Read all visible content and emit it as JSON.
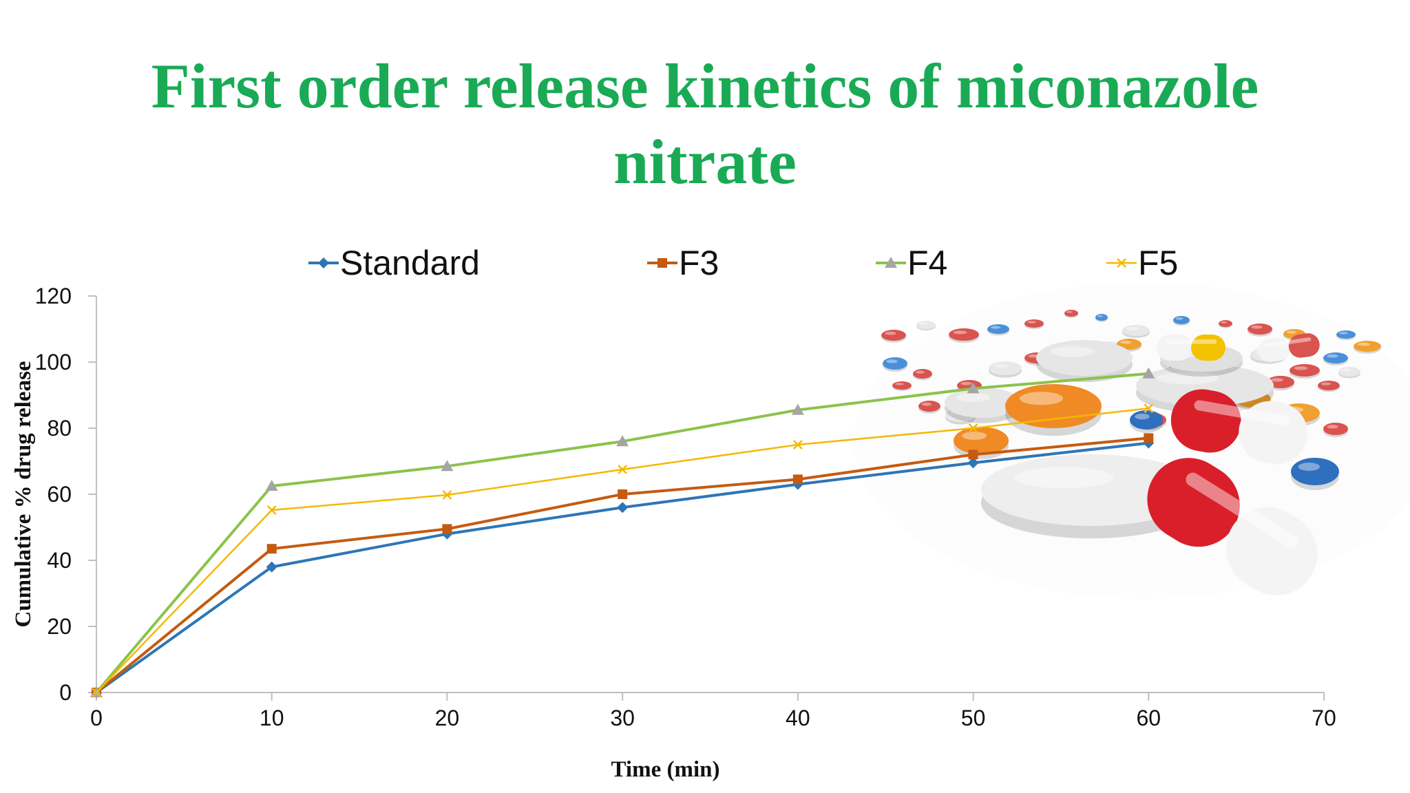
{
  "title_lines": [
    "First order release kinetics of miconazole",
    "nitrate"
  ],
  "colors": {
    "title": "#1aaa55",
    "Standard": "#2e75b6",
    "F3": "#c55a11",
    "F4": "#8bc34a",
    "F5": "#f5b800"
  },
  "chart_data": {
    "type": "line",
    "title": "First order release kinetics of miconazole nitrate",
    "xlabel": "Time (min)",
    "ylabel": "Cumulative % drug release",
    "xlim": [
      0,
      70
    ],
    "ylim": [
      0,
      120
    ],
    "x_ticks": [
      "0",
      "10",
      "20",
      "30",
      "40",
      "50",
      "60",
      "70"
    ],
    "y_ticks": [
      "0",
      "20",
      "40",
      "60",
      "80",
      "100",
      "120"
    ],
    "legend_position": "top",
    "grid": false,
    "x": [
      0,
      10,
      20,
      30,
      40,
      50,
      60
    ],
    "series": [
      {
        "name": "Standard",
        "marker": "diamond",
        "values": [
          0,
          38,
          48,
          56,
          63,
          69.5,
          75.5
        ]
      },
      {
        "name": "F3",
        "marker": "square",
        "values": [
          0,
          43.5,
          49.5,
          60,
          64.5,
          72,
          77
        ]
      },
      {
        "name": "F4",
        "marker": "triangle",
        "values": [
          0,
          62.5,
          68.5,
          76,
          85.5,
          92,
          96.5
        ]
      },
      {
        "name": "F5",
        "marker": "x",
        "values": [
          0,
          55.2,
          59.8,
          67.5,
          75,
          80,
          86
        ]
      }
    ]
  },
  "decoration": {
    "icon": "pills-image"
  }
}
